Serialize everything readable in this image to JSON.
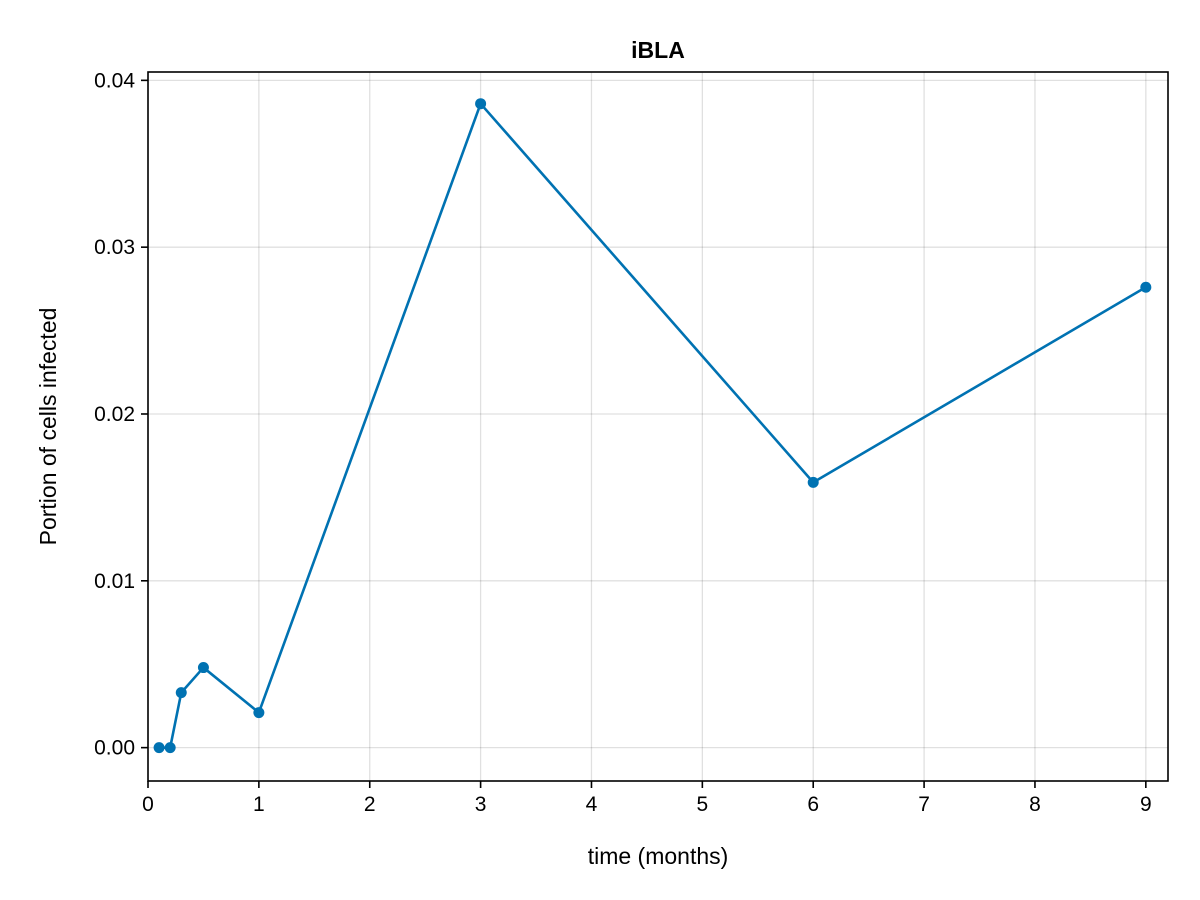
{
  "chart_data": {
    "type": "line",
    "title": "iBLA",
    "xlabel": "time (months)",
    "ylabel": "Portion of cells infected",
    "xlim": [
      0,
      9.2
    ],
    "ylim": [
      -0.002,
      0.0405
    ],
    "xticks": [
      0,
      1,
      2,
      3,
      4,
      5,
      6,
      7,
      8,
      9
    ],
    "xtick_labels": [
      "0",
      "1",
      "2",
      "3",
      "4",
      "5",
      "6",
      "7",
      "8",
      "9"
    ],
    "yticks": [
      0.0,
      0.01,
      0.02,
      0.03,
      0.04
    ],
    "ytick_labels": [
      "0.00",
      "0.01",
      "0.02",
      "0.03",
      "0.04"
    ],
    "grid": true,
    "legend": "none",
    "series": [
      {
        "color": "#0072b2",
        "markers": true,
        "x": [
          0.1,
          0.2,
          0.3,
          0.5,
          1,
          3,
          6,
          9
        ],
        "y": [
          0.0,
          0.0,
          0.0033,
          0.0048,
          0.0021,
          0.0386,
          0.0159,
          0.0276
        ]
      }
    ]
  }
}
